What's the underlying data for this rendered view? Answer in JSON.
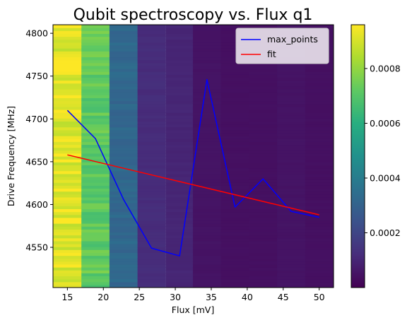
{
  "chart_data": {
    "type": "heatmap",
    "title": "Qubit spectroscopy vs. Flux q1",
    "xlabel": "Flux [mV]",
    "ylabel": "Drive Frequency [MHz]",
    "xlim": [
      13,
      52
    ],
    "ylim": [
      4503,
      4810
    ],
    "xticks": [
      15,
      20,
      25,
      30,
      35,
      40,
      45,
      50
    ],
    "yticks": [
      4550,
      4600,
      4650,
      4700,
      4750,
      4800
    ],
    "heatmap": {
      "flux_columns": [
        15.0,
        18.9,
        22.8,
        26.7,
        30.6,
        34.4,
        38.3,
        42.2,
        46.1,
        50.0
      ],
      "column_levels": [
        0.00092,
        0.00072,
        0.00032,
        0.00012,
        0.0001,
        5e-05,
        4e-05,
        4e-05,
        5e-05,
        4e-05
      ],
      "color_range": [
        0.0,
        0.00096
      ]
    },
    "series": [
      {
        "name": "max_points",
        "color": "#0000ff",
        "x": [
          15.0,
          18.9,
          22.8,
          26.7,
          30.6,
          34.4,
          38.3,
          42.2,
          46.1,
          50.0
        ],
        "y": [
          4710,
          4677,
          4606,
          4549,
          4540,
          4746,
          4597,
          4630,
          4592,
          4585
        ]
      },
      {
        "name": "fit",
        "color": "#ff0000",
        "x": [
          15.0,
          50.0
        ],
        "y": [
          4658,
          4588
        ]
      }
    ],
    "legend": {
      "position": "top-right",
      "entries": [
        "max_points",
        "fit"
      ]
    },
    "colorbar": {
      "vmin": 0.0,
      "vmax": 0.00096,
      "ticks": [
        0.0002,
        0.0004,
        0.0006,
        0.0008
      ],
      "tick_labels": [
        "0.0002",
        "0.0004",
        "0.0006",
        "0.0008"
      ]
    }
  }
}
